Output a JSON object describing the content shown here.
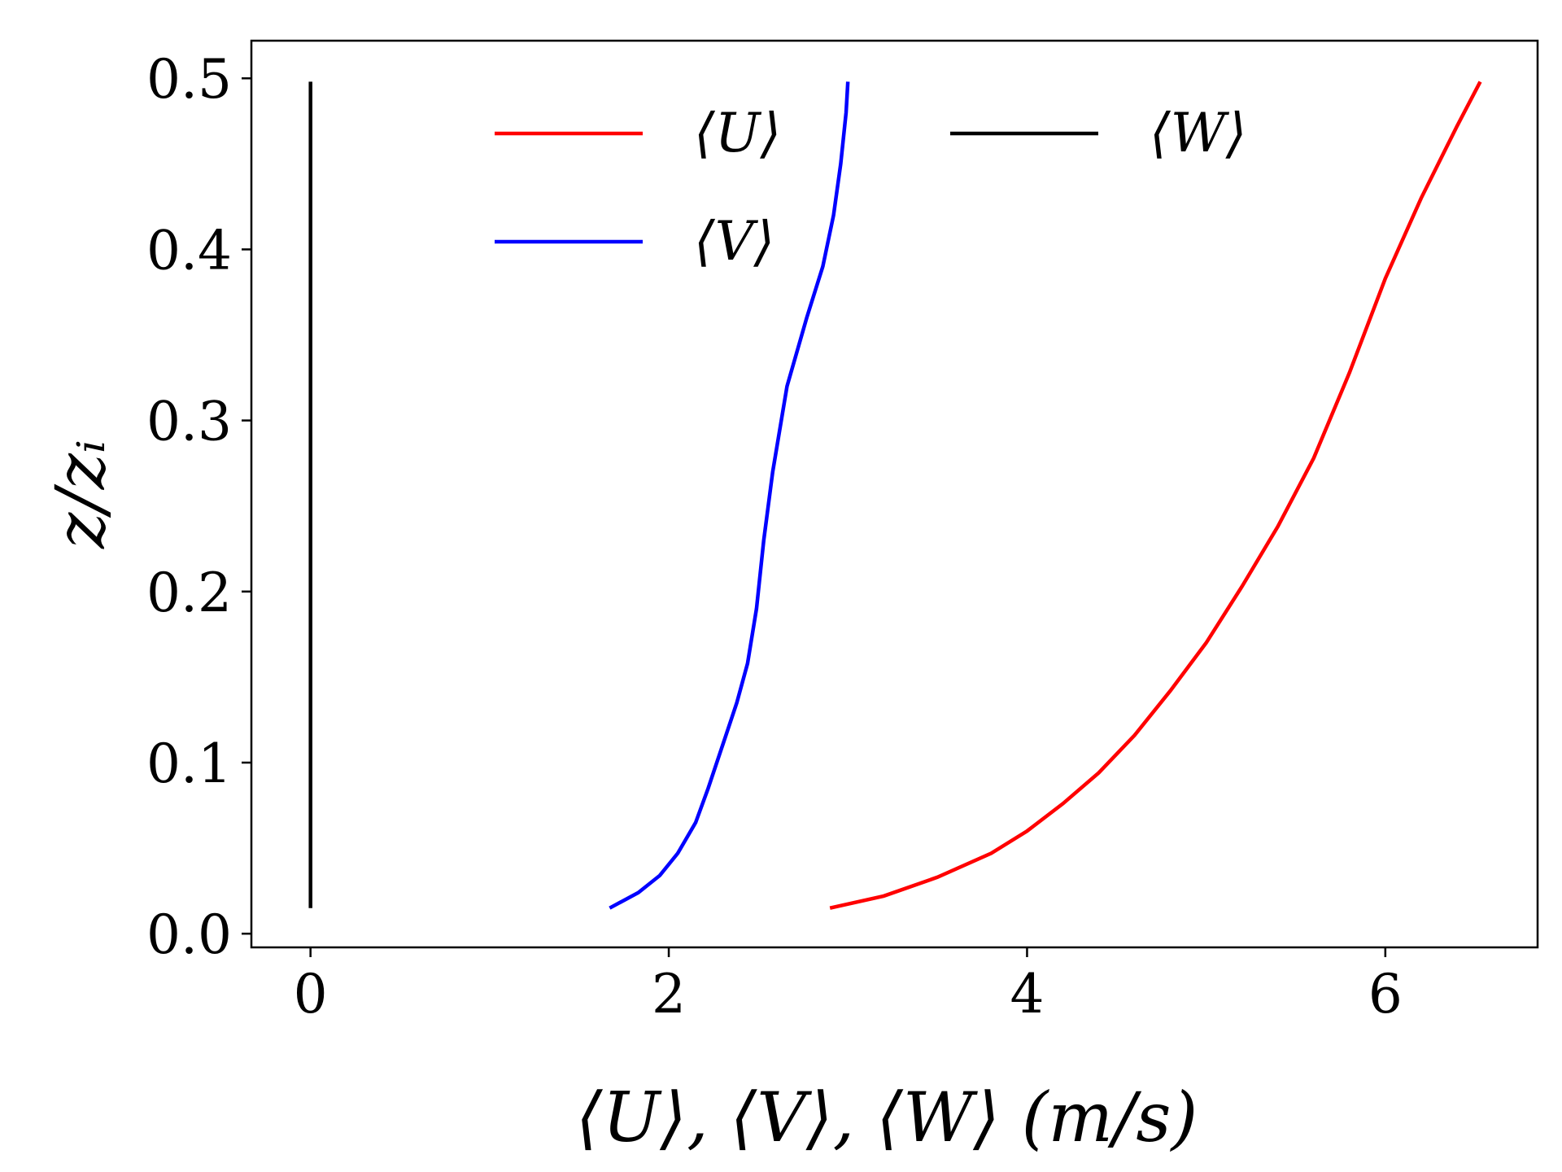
{
  "chart_data": {
    "type": "line",
    "xlabel": "⟨U⟩, ⟨V⟩, ⟨W⟩ (m/s)",
    "ylabel": "z/zᵢ",
    "xlim": [
      -0.33,
      6.85
    ],
    "ylim": [
      -0.008,
      0.522
    ],
    "xticks": [
      0,
      2,
      4,
      6
    ],
    "yticks": [
      0.0,
      0.1,
      0.2,
      0.3,
      0.4,
      0.5
    ],
    "xtick_labels": [
      "0",
      "2",
      "4",
      "6"
    ],
    "ytick_labels": [
      "0.0",
      "0.1",
      "0.2",
      "0.3",
      "0.4",
      "0.5"
    ],
    "grid": false,
    "legend_position": "top-center",
    "series": [
      {
        "name": "⟨U⟩",
        "color": "#ff0000",
        "points": [
          [
            2.9,
            0.015
          ],
          [
            3.2,
            0.022
          ],
          [
            3.5,
            0.033
          ],
          [
            3.8,
            0.047
          ],
          [
            4.0,
            0.06
          ],
          [
            4.2,
            0.076
          ],
          [
            4.4,
            0.094
          ],
          [
            4.6,
            0.116
          ],
          [
            4.8,
            0.142
          ],
          [
            5.0,
            0.17
          ],
          [
            5.2,
            0.203
          ],
          [
            5.4,
            0.238
          ],
          [
            5.6,
            0.278
          ],
          [
            5.8,
            0.328
          ],
          [
            6.0,
            0.383
          ],
          [
            6.2,
            0.43
          ],
          [
            6.4,
            0.472
          ],
          [
            6.53,
            0.498
          ]
        ]
      },
      {
        "name": "⟨V⟩",
        "color": "#0000ff",
        "points": [
          [
            1.67,
            0.015
          ],
          [
            1.83,
            0.024
          ],
          [
            1.95,
            0.034
          ],
          [
            2.05,
            0.047
          ],
          [
            2.15,
            0.065
          ],
          [
            2.22,
            0.085
          ],
          [
            2.3,
            0.11
          ],
          [
            2.38,
            0.135
          ],
          [
            2.44,
            0.158
          ],
          [
            2.49,
            0.19
          ],
          [
            2.53,
            0.23
          ],
          [
            2.58,
            0.27
          ],
          [
            2.66,
            0.32
          ],
          [
            2.77,
            0.36
          ],
          [
            2.86,
            0.39
          ],
          [
            2.92,
            0.42
          ],
          [
            2.96,
            0.45
          ],
          [
            2.99,
            0.48
          ],
          [
            3.0,
            0.498
          ]
        ]
      },
      {
        "name": "⟨W⟩",
        "color": "#000000",
        "points": [
          [
            0.0,
            0.015
          ],
          [
            0.0,
            0.498
          ]
        ]
      }
    ]
  }
}
